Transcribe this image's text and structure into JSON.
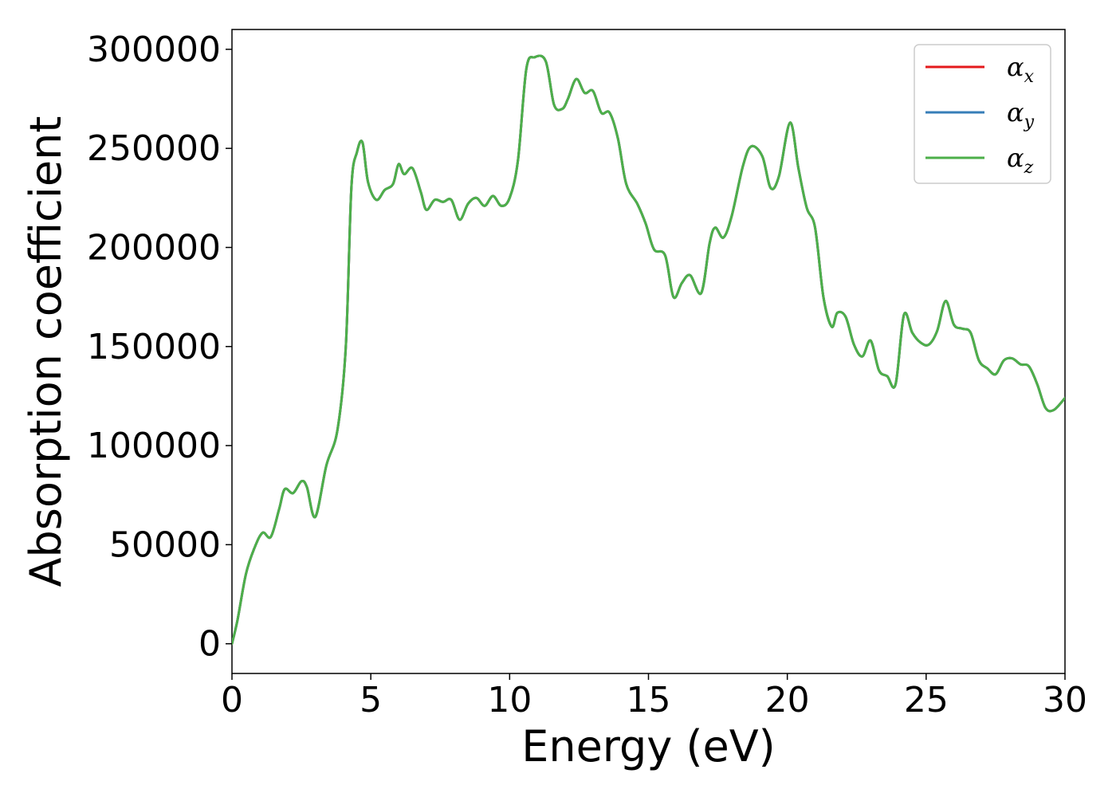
{
  "chart_data": {
    "type": "line",
    "title": "",
    "xlabel": "Energy (eV)",
    "ylabel": "Absorption coefficient",
    "xlim": [
      0,
      30
    ],
    "ylim": [
      -15000,
      310000
    ],
    "xticks": [
      0,
      5,
      10,
      15,
      20,
      25,
      30
    ],
    "xtick_labels": [
      "0",
      "5",
      "10",
      "15",
      "20",
      "25",
      "30"
    ],
    "yticks": [
      0,
      50000,
      100000,
      150000,
      200000,
      250000,
      300000
    ],
    "ytick_labels": [
      "0",
      "50000",
      "100000",
      "150000",
      "200000",
      "250000",
      "300000"
    ],
    "grid": false,
    "legend": {
      "placement": "top-right",
      "entries": [
        {
          "symbol": "α",
          "subscript": "x",
          "color": "#e41a1c"
        },
        {
          "symbol": "α",
          "subscript": "y",
          "color": "#377eb8"
        },
        {
          "symbol": "α",
          "subscript": "z",
          "color": "#4daf4a"
        }
      ]
    },
    "x": [
      0,
      0.2,
      0.5,
      0.8,
      1.1,
      1.4,
      1.7,
      1.9,
      2.2,
      2.5,
      2.7,
      3.0,
      3.4,
      3.8,
      4.1,
      4.3,
      4.5,
      4.7,
      4.9,
      5.2,
      5.5,
      5.8,
      6.0,
      6.2,
      6.5,
      6.8,
      7.0,
      7.3,
      7.6,
      7.9,
      8.2,
      8.5,
      8.8,
      9.1,
      9.4,
      9.7,
      10.0,
      10.3,
      10.6,
      10.9,
      11.3,
      11.6,
      11.9,
      12.1,
      12.4,
      12.7,
      13.0,
      13.3,
      13.6,
      13.9,
      14.2,
      14.6,
      14.9,
      15.2,
      15.6,
      15.9,
      16.2,
      16.5,
      16.9,
      17.2,
      17.4,
      17.7,
      18.0,
      18.4,
      18.7,
      19.1,
      19.4,
      19.7,
      20.1,
      20.4,
      20.7,
      21.0,
      21.3,
      21.6,
      21.8,
      22.1,
      22.4,
      22.7,
      23.0,
      23.3,
      23.6,
      23.9,
      24.2,
      24.5,
      24.8,
      25.1,
      25.4,
      25.7,
      26.0,
      26.3,
      26.6,
      26.9,
      27.2,
      27.5,
      27.8,
      28.1,
      28.4,
      28.7,
      29.0,
      29.3,
      29.6,
      30.0
    ],
    "series": [
      {
        "name": "αx",
        "color": "#e41a1c",
        "values": [
          0,
          12000,
          35000,
          48000,
          56000,
          54000,
          68000,
          78000,
          76000,
          82000,
          79000,
          64000,
          90000,
          108000,
          150000,
          230000,
          248000,
          253000,
          233000,
          224000,
          229000,
          232000,
          242000,
          237000,
          240000,
          228000,
          219000,
          224000,
          223000,
          224000,
          214000,
          222000,
          225000,
          221000,
          226000,
          221000,
          225000,
          244000,
          290000,
          296000,
          294000,
          272000,
          270000,
          275000,
          285000,
          278000,
          279000,
          268000,
          268000,
          255000,
          232000,
          222000,
          212000,
          199000,
          196000,
          175000,
          182000,
          186000,
          177000,
          202000,
          210000,
          205000,
          216000,
          241000,
          251000,
          246000,
          230000,
          236000,
          263000,
          240000,
          220000,
          210000,
          175000,
          160000,
          167000,
          165000,
          151000,
          145000,
          153000,
          138000,
          135000,
          131000,
          166000,
          157000,
          152000,
          151000,
          158000,
          173000,
          161000,
          159000,
          157000,
          143000,
          139000,
          136000,
          143000,
          144000,
          141000,
          140000,
          131000,
          119000,
          118000,
          124000
        ]
      },
      {
        "name": "αy",
        "color": "#377eb8",
        "values": [
          0,
          12000,
          35000,
          48000,
          56000,
          54000,
          68000,
          78000,
          76000,
          82000,
          79000,
          64000,
          90000,
          108000,
          150000,
          230000,
          248000,
          253000,
          233000,
          224000,
          229000,
          232000,
          242000,
          237000,
          240000,
          228000,
          219000,
          224000,
          223000,
          224000,
          214000,
          222000,
          225000,
          221000,
          226000,
          221000,
          225000,
          244000,
          290000,
          296000,
          294000,
          272000,
          270000,
          275000,
          285000,
          278000,
          279000,
          268000,
          268000,
          255000,
          232000,
          222000,
          212000,
          199000,
          196000,
          175000,
          182000,
          186000,
          177000,
          202000,
          210000,
          205000,
          216000,
          241000,
          251000,
          246000,
          230000,
          236000,
          263000,
          240000,
          220000,
          210000,
          175000,
          160000,
          167000,
          165000,
          151000,
          145000,
          153000,
          138000,
          135000,
          131000,
          166000,
          157000,
          152000,
          151000,
          158000,
          173000,
          161000,
          159000,
          157000,
          143000,
          139000,
          136000,
          143000,
          144000,
          141000,
          140000,
          131000,
          119000,
          118000,
          124000
        ]
      },
      {
        "name": "αz",
        "color": "#4daf4a",
        "values": [
          0,
          12000,
          35000,
          48000,
          56000,
          54000,
          68000,
          78000,
          76000,
          82000,
          79000,
          64000,
          90000,
          108000,
          150000,
          230000,
          248000,
          253000,
          233000,
          224000,
          229000,
          232000,
          242000,
          237000,
          240000,
          228000,
          219000,
          224000,
          223000,
          224000,
          214000,
          222000,
          225000,
          221000,
          226000,
          221000,
          225000,
          244000,
          290000,
          296000,
          294000,
          272000,
          270000,
          275000,
          285000,
          278000,
          279000,
          268000,
          268000,
          255000,
          232000,
          222000,
          212000,
          199000,
          196000,
          175000,
          182000,
          186000,
          177000,
          202000,
          210000,
          205000,
          216000,
          241000,
          251000,
          246000,
          230000,
          236000,
          263000,
          240000,
          220000,
          210000,
          175000,
          160000,
          167000,
          165000,
          151000,
          145000,
          153000,
          138000,
          135000,
          131000,
          166000,
          157000,
          152000,
          151000,
          158000,
          173000,
          161000,
          159000,
          157000,
          143000,
          139000,
          136000,
          143000,
          144000,
          141000,
          140000,
          131000,
          119000,
          118000,
          124000
        ]
      }
    ]
  }
}
